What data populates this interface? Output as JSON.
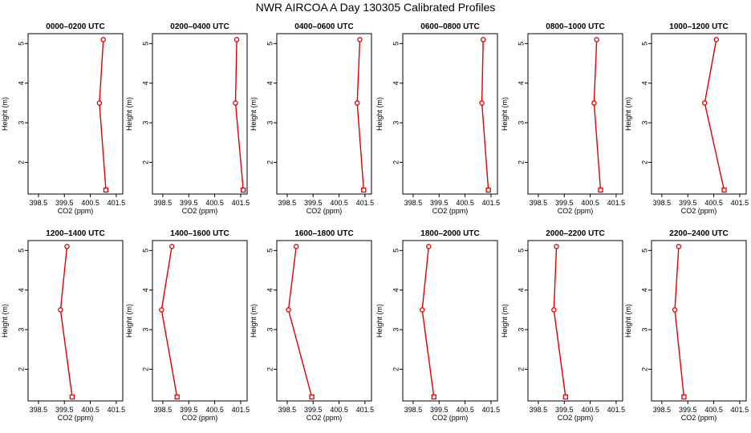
{
  "title": "NWR AIRCOA A  Day 130305  Calibrated Profiles",
  "colors": {
    "series": "#dd0000",
    "axis": "#000000"
  },
  "chart_data": [
    {
      "type": "line",
      "title": "0000–0200 UTC",
      "xlabel": "CO2 (ppm)",
      "ylabel": "Height (m)",
      "xlim": [
        398.1,
        401.75
      ],
      "ylim": [
        1.2,
        5.25
      ],
      "xticks": [
        "398.5",
        "399.5",
        "400.5",
        "401.5"
      ],
      "yticks": [
        "2",
        "3",
        "4",
        "5"
      ],
      "x": [
        401.0,
        400.85,
        401.1
      ],
      "y": [
        5.1,
        3.5,
        1.3
      ]
    },
    {
      "type": "line",
      "title": "0200–0400 UTC",
      "xlabel": "CO2 (ppm)",
      "ylabel": "Height (m)",
      "xlim": [
        398.1,
        401.75
      ],
      "ylim": [
        1.2,
        5.25
      ],
      "xticks": [
        "398.5",
        "399.5",
        "400.5",
        "401.5"
      ],
      "yticks": [
        "2",
        "3",
        "4",
        "5"
      ],
      "x": [
        401.35,
        401.3,
        401.6
      ],
      "y": [
        5.1,
        3.5,
        1.3
      ]
    },
    {
      "type": "line",
      "title": "0400–0600 UTC",
      "xlabel": "CO2 (ppm)",
      "ylabel": "Height (m)",
      "xlim": [
        398.1,
        401.75
      ],
      "ylim": [
        1.2,
        5.25
      ],
      "xticks": [
        "398.5",
        "399.5",
        "400.5",
        "401.5"
      ],
      "yticks": [
        "2",
        "3",
        "4",
        "5"
      ],
      "x": [
        401.3,
        401.2,
        401.45
      ],
      "y": [
        5.1,
        3.5,
        1.3
      ]
    },
    {
      "type": "line",
      "title": "0600–0800 UTC",
      "xlabel": "CO2 (ppm)",
      "ylabel": "Height (m)",
      "xlim": [
        398.1,
        401.75
      ],
      "ylim": [
        1.2,
        5.25
      ],
      "xticks": [
        "398.5",
        "399.5",
        "400.5",
        "401.5"
      ],
      "yticks": [
        "2",
        "3",
        "4",
        "5"
      ],
      "x": [
        401.2,
        401.15,
        401.4
      ],
      "y": [
        5.1,
        3.5,
        1.3
      ]
    },
    {
      "type": "line",
      "title": "0800–1000 UTC",
      "xlabel": "CO2 (ppm)",
      "ylabel": "Height (m)",
      "xlim": [
        398.1,
        401.75
      ],
      "ylim": [
        1.2,
        5.25
      ],
      "xticks": [
        "398.5",
        "399.5",
        "400.5",
        "401.5"
      ],
      "yticks": [
        "2",
        "3",
        "4",
        "5"
      ],
      "x": [
        400.75,
        400.65,
        400.9
      ],
      "y": [
        5.1,
        3.5,
        1.3
      ]
    },
    {
      "type": "line",
      "title": "1000–1200 UTC",
      "xlabel": "CO2 (ppm)",
      "ylabel": "Height (m)",
      "xlim": [
        398.1,
        401.75
      ],
      "ylim": [
        1.2,
        5.25
      ],
      "xticks": [
        "398.5",
        "399.5",
        "400.5",
        "401.5"
      ],
      "yticks": [
        "2",
        "3",
        "4",
        "5"
      ],
      "x": [
        400.6,
        400.15,
        400.9
      ],
      "y": [
        5.1,
        3.5,
        1.3
      ]
    },
    {
      "type": "line",
      "title": "1200–1400 UTC",
      "xlabel": "CO2 (ppm)",
      "ylabel": "Height (m)",
      "xlim": [
        398.1,
        401.75
      ],
      "ylim": [
        1.2,
        5.25
      ],
      "xticks": [
        "398.5",
        "399.5",
        "400.5",
        "401.5"
      ],
      "yticks": [
        "2",
        "3",
        "4",
        "5"
      ],
      "x": [
        399.6,
        399.35,
        399.8
      ],
      "y": [
        5.1,
        3.5,
        1.3
      ]
    },
    {
      "type": "line",
      "title": "1400–1600 UTC",
      "xlabel": "CO2 (ppm)",
      "ylabel": "Height (m)",
      "xlim": [
        398.1,
        401.75
      ],
      "ylim": [
        1.2,
        5.25
      ],
      "xticks": [
        "398.5",
        "399.5",
        "400.5",
        "401.5"
      ],
      "yticks": [
        "2",
        "3",
        "4",
        "5"
      ],
      "x": [
        398.85,
        398.45,
        399.05
      ],
      "y": [
        5.1,
        3.5,
        1.3
      ]
    },
    {
      "type": "line",
      "title": "1600–1800 UTC",
      "xlabel": "CO2 (ppm)",
      "ylabel": "Height (m)",
      "xlim": [
        398.1,
        401.75
      ],
      "ylim": [
        1.2,
        5.25
      ],
      "xticks": [
        "398.5",
        "399.5",
        "400.5",
        "401.5"
      ],
      "yticks": [
        "2",
        "3",
        "4",
        "5"
      ],
      "x": [
        398.85,
        398.55,
        399.45
      ],
      "y": [
        5.1,
        3.5,
        1.3
      ]
    },
    {
      "type": "line",
      "title": "1800–2000 UTC",
      "xlabel": "CO2 (ppm)",
      "ylabel": "Height (m)",
      "xlim": [
        398.1,
        401.75
      ],
      "ylim": [
        1.2,
        5.25
      ],
      "xticks": [
        "398.5",
        "399.5",
        "400.5",
        "401.5"
      ],
      "yticks": [
        "2",
        "3",
        "4",
        "5"
      ],
      "x": [
        399.1,
        398.85,
        399.3
      ],
      "y": [
        5.1,
        3.5,
        1.3
      ]
    },
    {
      "type": "line",
      "title": "2000–2200 UTC",
      "xlabel": "CO2 (ppm)",
      "ylabel": "Height (m)",
      "xlim": [
        398.1,
        401.75
      ],
      "ylim": [
        1.2,
        5.25
      ],
      "xticks": [
        "398.5",
        "399.5",
        "400.5",
        "401.5"
      ],
      "yticks": [
        "2",
        "3",
        "4",
        "5"
      ],
      "x": [
        399.2,
        399.1,
        399.55
      ],
      "y": [
        5.1,
        3.5,
        1.3
      ]
    },
    {
      "type": "line",
      "title": "2200–2400 UTC",
      "xlabel": "CO2 (ppm)",
      "ylabel": "Height (m)",
      "xlim": [
        398.1,
        401.75
      ],
      "ylim": [
        1.2,
        5.25
      ],
      "xticks": [
        "398.5",
        "399.5",
        "400.5",
        "401.5"
      ],
      "yticks": [
        "2",
        "3",
        "4",
        "5"
      ],
      "x": [
        399.15,
        399.0,
        399.35
      ],
      "y": [
        5.1,
        3.5,
        1.3
      ]
    }
  ]
}
